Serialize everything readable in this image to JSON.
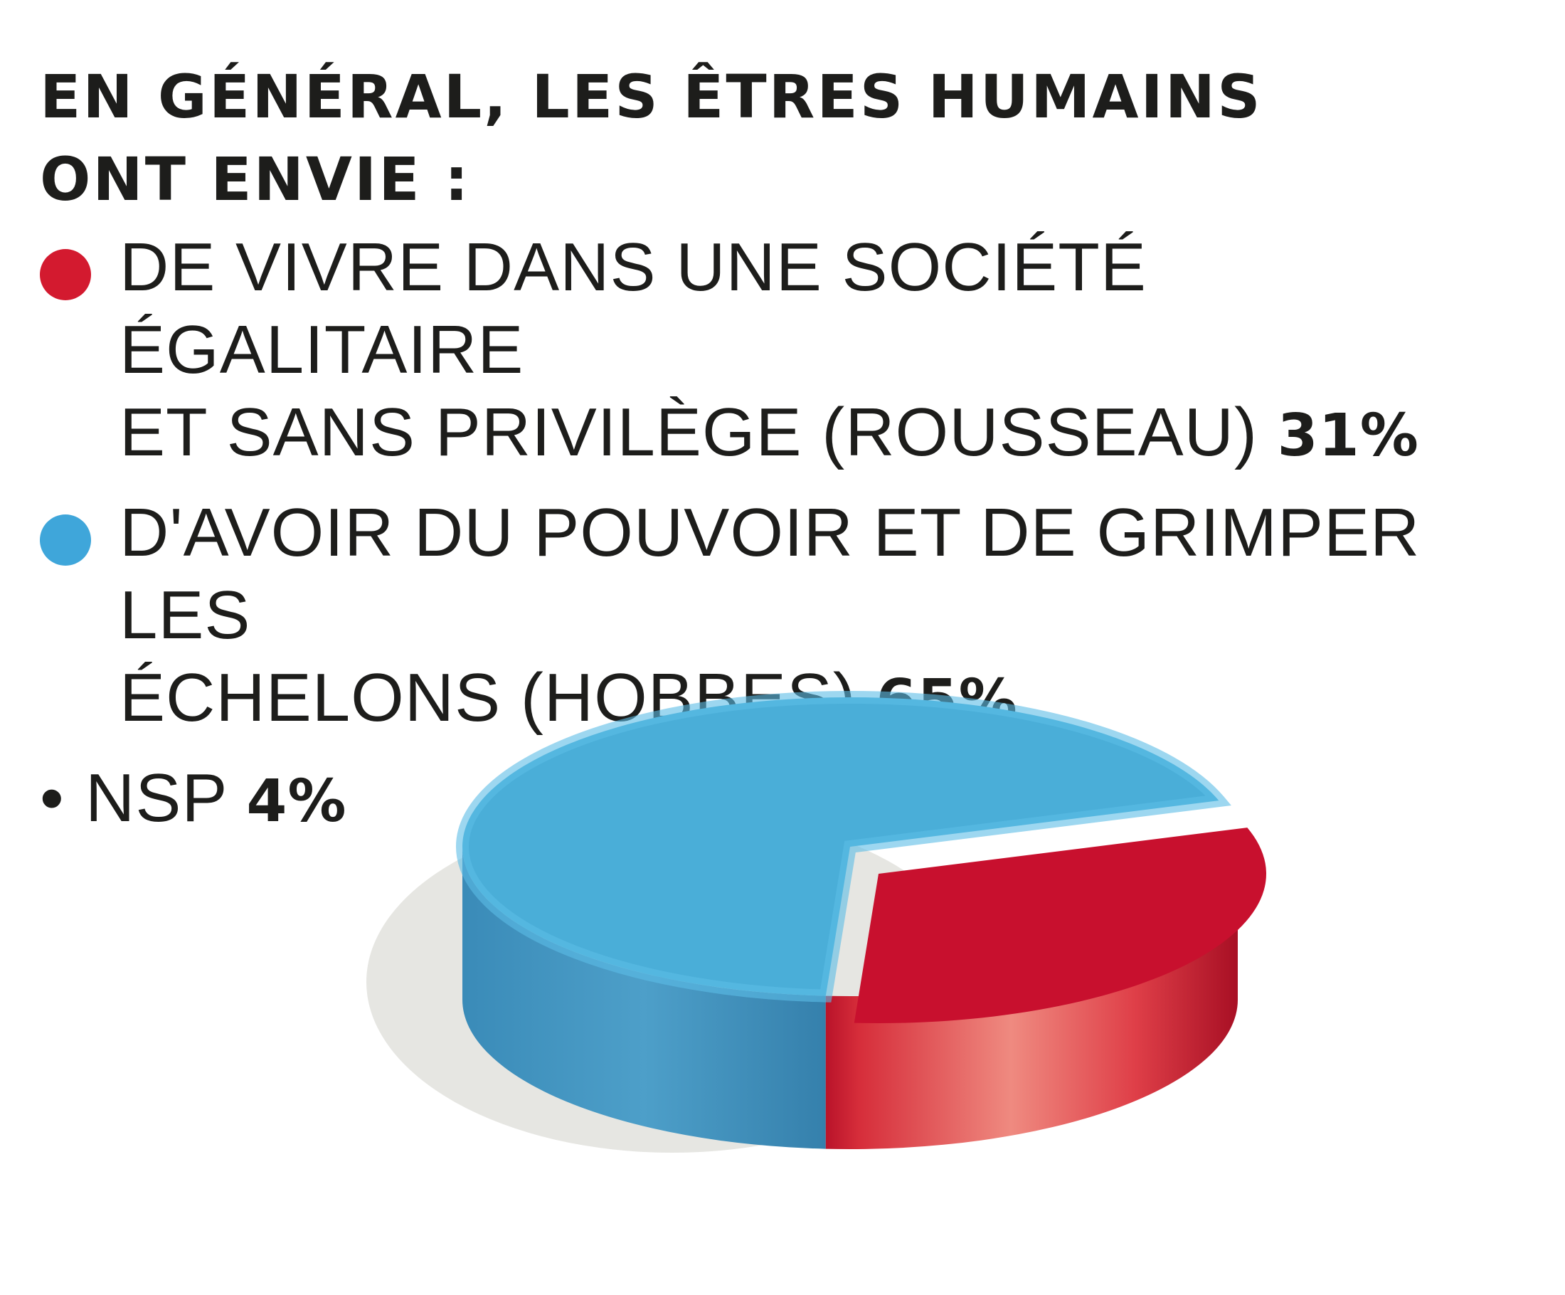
{
  "chart_data": {
    "type": "pie",
    "title_lines": [
      "EN GÉNÉRAL, LES ÊTRES HUMAINS",
      "ONT ENVIE :"
    ],
    "slices": [
      {
        "label_lines": [
          "DE VIVRE DANS UNE SOCIÉTÉ ÉGALITAIRE",
          "ET SANS PRIVILÈGE (ROUSSEAU)"
        ],
        "value": 31,
        "value_label": "31%",
        "color": "#c8102e"
      },
      {
        "label_lines": [
          "D'AVOIR DU POUVOIR ET DE GRIMPER LES",
          "ÉCHELONS (HOBBES)"
        ],
        "value": 65,
        "value_label": "65%",
        "color": "#4ba9d6"
      },
      {
        "label_lines": [
          "NSP"
        ],
        "value": 4,
        "value_label": "4%",
        "color": "#4ba9d6"
      }
    ],
    "nsp_bullet": "•",
    "style": "3d"
  }
}
